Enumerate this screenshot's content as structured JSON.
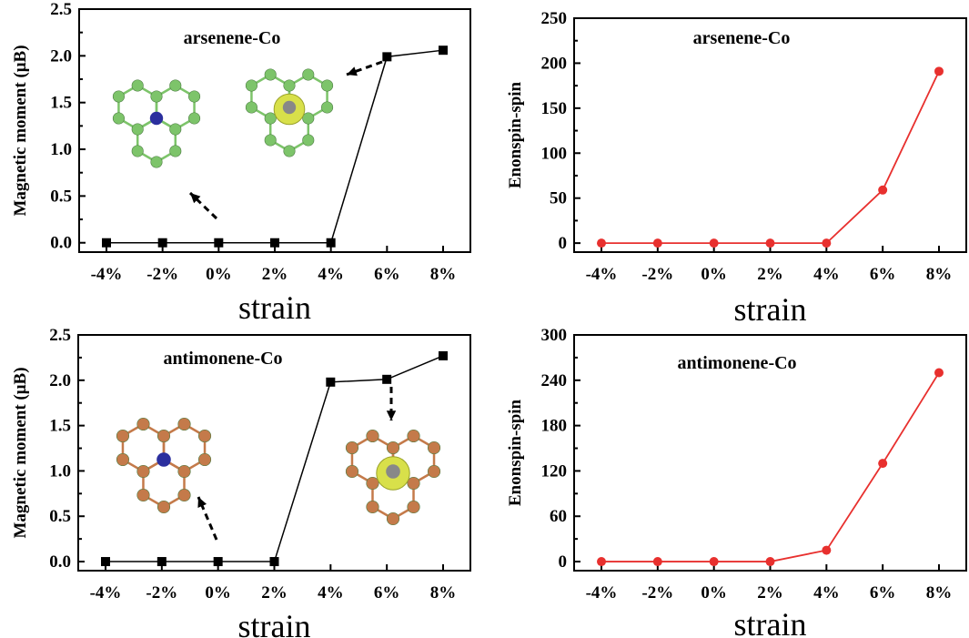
{
  "chart_data": [
    {
      "id": "a",
      "type": "line",
      "title": "arsenene-Co",
      "xlabel": "strain",
      "ylabel": "Magnetic moment (μB)",
      "categories": [
        "-4%",
        "-2%",
        "0%",
        "2%",
        "4%",
        "6%",
        "8%"
      ],
      "series": [
        {
          "values": [
            0.0,
            0.0,
            0.0,
            0.0,
            0.0,
            1.99,
            2.06
          ]
        }
      ],
      "yticks": [
        "0.0",
        "0.5",
        "1.0",
        "1.5",
        "2.0",
        "2.5"
      ],
      "ylim": [
        -0.1,
        2.5
      ],
      "color": "#000000",
      "marker": "square",
      "inset_structures": [
        {
          "atom_color": "#7dc46a",
          "center_color": "#2b2f9e",
          "spin_density": false
        },
        {
          "atom_color": "#7dc46a",
          "center_color": "#888888",
          "spin_density": true
        }
      ]
    },
    {
      "id": "b",
      "type": "line",
      "title": "arsenene-Co",
      "xlabel": "strain",
      "ylabel": "Enonspin-spin",
      "categories": [
        "-4%",
        "-2%",
        "0%",
        "2%",
        "4%",
        "6%",
        "8%"
      ],
      "series": [
        {
          "values": [
            0,
            0,
            0,
            0,
            0,
            59,
            191
          ]
        }
      ],
      "yticks": [
        "0",
        "50",
        "100",
        "150",
        "200",
        "250"
      ],
      "ylim": [
        -10,
        250
      ],
      "color": "#e8302e",
      "marker": "circle"
    },
    {
      "id": "c",
      "type": "line",
      "title": "antimonene-Co",
      "xlabel": "strain",
      "ylabel": "Magnetic moment (μB)",
      "categories": [
        "-4%",
        "-2%",
        "0%",
        "2%",
        "4%",
        "6%",
        "8%"
      ],
      "series": [
        {
          "values": [
            0.0,
            0.0,
            0.0,
            0.0,
            1.98,
            2.01,
            2.27
          ]
        }
      ],
      "yticks": [
        "0.0",
        "0.5",
        "1.0",
        "1.5",
        "2.0",
        "2.5"
      ],
      "ylim": [
        -0.1,
        2.5
      ],
      "color": "#000000",
      "marker": "square",
      "inset_structures": [
        {
          "atom_color": "#c47a4a",
          "center_color": "#2b2f9e",
          "spin_density": false
        },
        {
          "atom_color": "#c47a4a",
          "center_color": "#888888",
          "spin_density": true
        }
      ]
    },
    {
      "id": "d",
      "type": "line",
      "title": "antimonene-Co",
      "xlabel": "strain",
      "ylabel": "Enonspin-spin",
      "categories": [
        "-4%",
        "-2%",
        "0%",
        "2%",
        "4%",
        "6%",
        "8%"
      ],
      "series": [
        {
          "values": [
            0,
            0,
            0,
            0,
            15,
            130,
            250
          ]
        }
      ],
      "yticks": [
        "0",
        "60",
        "120",
        "180",
        "240",
        "300"
      ],
      "ylim": [
        -12,
        300
      ],
      "color": "#e8302e",
      "marker": "circle"
    }
  ]
}
